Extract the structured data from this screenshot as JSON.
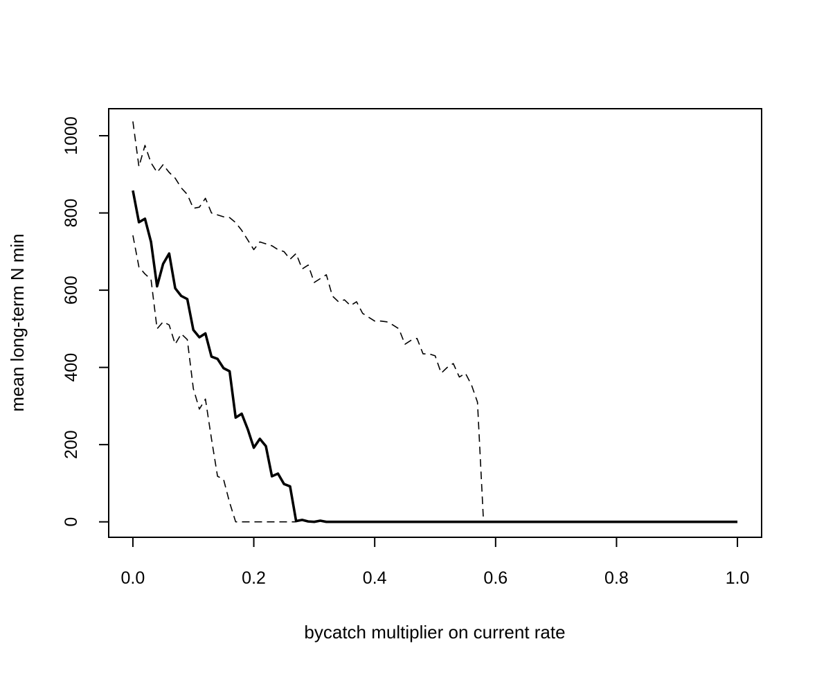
{
  "chart_data": {
    "type": "line",
    "xlabel": "bycatch multiplier on current rate",
    "ylabel": "mean long-term N min",
    "xlim": [
      -0.04,
      1.04
    ],
    "ylim": [
      -40,
      1070
    ],
    "x_ticks": [
      0.0,
      0.2,
      0.4,
      0.6,
      0.8,
      1.0
    ],
    "x_tick_labels": [
      "0.0",
      "0.2",
      "0.4",
      "0.6",
      "0.8",
      "1.0"
    ],
    "y_ticks": [
      0,
      200,
      400,
      600,
      800,
      1000
    ],
    "y_tick_labels": [
      "0",
      "200",
      "400",
      "600",
      "800",
      "1000"
    ],
    "grid": false,
    "legend": "none",
    "series": [
      {
        "style": "solid-thick",
        "x": [
          0.0,
          0.01,
          0.02,
          0.03,
          0.04,
          0.05,
          0.06,
          0.07,
          0.08,
          0.09,
          0.1,
          0.11,
          0.12,
          0.13,
          0.14,
          0.15,
          0.16,
          0.17,
          0.18,
          0.19,
          0.2,
          0.21,
          0.22,
          0.23,
          0.24,
          0.25,
          0.26,
          0.27,
          0.28,
          0.29,
          0.3,
          0.31,
          0.32,
          0.35,
          0.4,
          0.5,
          0.6,
          0.7,
          0.8,
          0.9,
          1.0
        ],
        "y": [
          858,
          776,
          785,
          725,
          610,
          668,
          695,
          605,
          585,
          577,
          497,
          478,
          488,
          428,
          422,
          398,
          390,
          270,
          280,
          240,
          192,
          215,
          196,
          118,
          125,
          98,
          92,
          2,
          5,
          1,
          0,
          3,
          0,
          0,
          0,
          0,
          0,
          0,
          0,
          0,
          0
        ]
      },
      {
        "style": "dashed",
        "x": [
          0.0,
          0.01,
          0.02,
          0.03,
          0.04,
          0.05,
          0.06,
          0.07,
          0.08,
          0.09,
          0.1,
          0.11,
          0.12,
          0.13,
          0.14,
          0.15,
          0.16,
          0.17,
          0.2,
          0.25,
          0.27
        ],
        "y": [
          742,
          660,
          642,
          628,
          500,
          518,
          510,
          460,
          487,
          472,
          345,
          292,
          318,
          215,
          118,
          110,
          50,
          0,
          0,
          0,
          0
        ]
      },
      {
        "style": "dashed",
        "x": [
          0.0,
          0.01,
          0.02,
          0.03,
          0.04,
          0.05,
          0.06,
          0.07,
          0.08,
          0.09,
          0.1,
          0.11,
          0.12,
          0.13,
          0.14,
          0.15,
          0.16,
          0.17,
          0.18,
          0.19,
          0.2,
          0.21,
          0.22,
          0.23,
          0.24,
          0.25,
          0.26,
          0.27,
          0.28,
          0.29,
          0.3,
          0.31,
          0.32,
          0.33,
          0.34,
          0.35,
          0.36,
          0.37,
          0.38,
          0.39,
          0.4,
          0.41,
          0.42,
          0.43,
          0.44,
          0.45,
          0.46,
          0.47,
          0.48,
          0.49,
          0.5,
          0.51,
          0.52,
          0.53,
          0.54,
          0.55,
          0.56,
          0.57,
          0.58
        ],
        "y": [
          1037,
          920,
          975,
          930,
          905,
          925,
          905,
          890,
          865,
          848,
          812,
          815,
          838,
          800,
          795,
          790,
          788,
          775,
          755,
          730,
          705,
          725,
          720,
          715,
          705,
          700,
          680,
          695,
          655,
          665,
          620,
          630,
          640,
          585,
          570,
          575,
          560,
          570,
          540,
          530,
          520,
          520,
          518,
          510,
          500,
          460,
          470,
          475,
          435,
          435,
          430,
          385,
          400,
          410,
          375,
          385,
          355,
          310,
          0
        ]
      }
    ]
  }
}
